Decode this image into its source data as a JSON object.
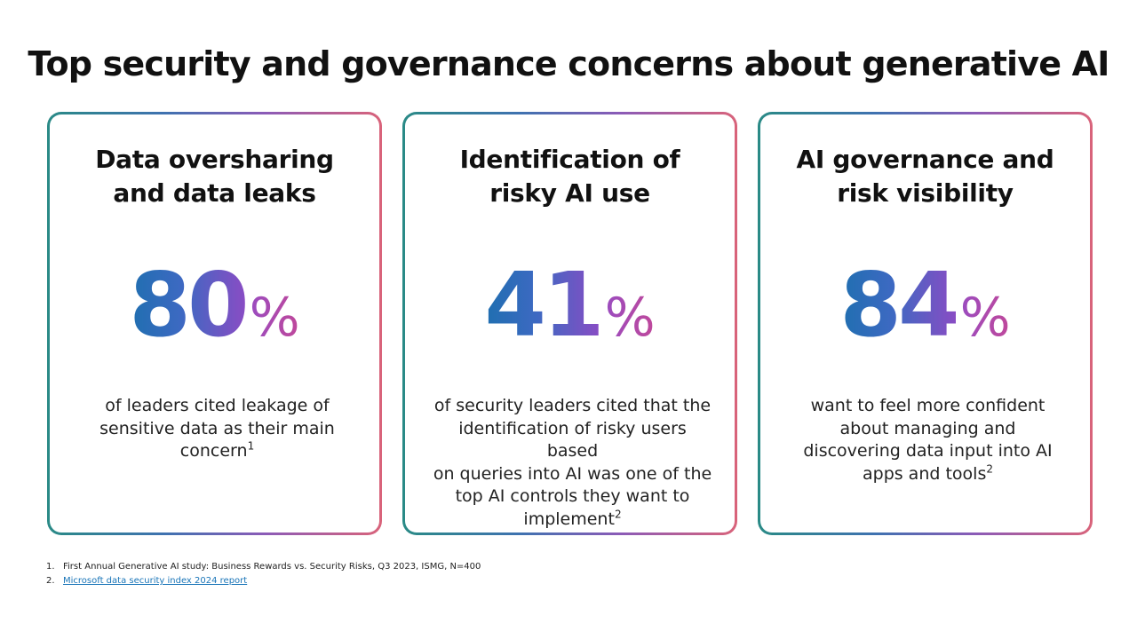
{
  "title": "Top security and governance concerns about generative AI",
  "cards": [
    {
      "heading_line1": "Data oversharing",
      "heading_line2": "and data leaks",
      "stat_value": "80",
      "stat_unit": "%",
      "body_lines": [
        "of leaders cited leakage of",
        "sensitive data as their main",
        "concern"
      ],
      "footnote_ref": "1"
    },
    {
      "heading_line1": "Identification of",
      "heading_line2": "risky AI use",
      "stat_value": "41",
      "stat_unit": "%",
      "body_lines": [
        "of security leaders cited that the",
        "identification of risky users based",
        "on queries into AI was one of the",
        "top AI controls they want to",
        "implement"
      ],
      "footnote_ref": "2"
    },
    {
      "heading_line1": "AI governance and",
      "heading_line2": "risk visibility",
      "stat_value": "84",
      "stat_unit": "%",
      "body_lines": [
        "want to feel more confident",
        "about managing and",
        "discovering data input into AI",
        "apps and tools"
      ],
      "footnote_ref": "2"
    }
  ],
  "footnotes": [
    {
      "number": "1.",
      "text": "First Annual Generative AI study: Business Rewards vs. Security Risks, Q3 2023, ISMG, N=400"
    },
    {
      "number": "2.",
      "text": "Microsoft data security index 2024 report"
    }
  ],
  "colors": {
    "card_border_gradient": [
      "#2a8a86",
      "#3f72b0",
      "#8b5bb7",
      "#d9637a"
    ],
    "stat_gradient": [
      "#1f6fb0",
      "#8a4cc4",
      "#c0489a"
    ],
    "link": "#1a75b8"
  }
}
